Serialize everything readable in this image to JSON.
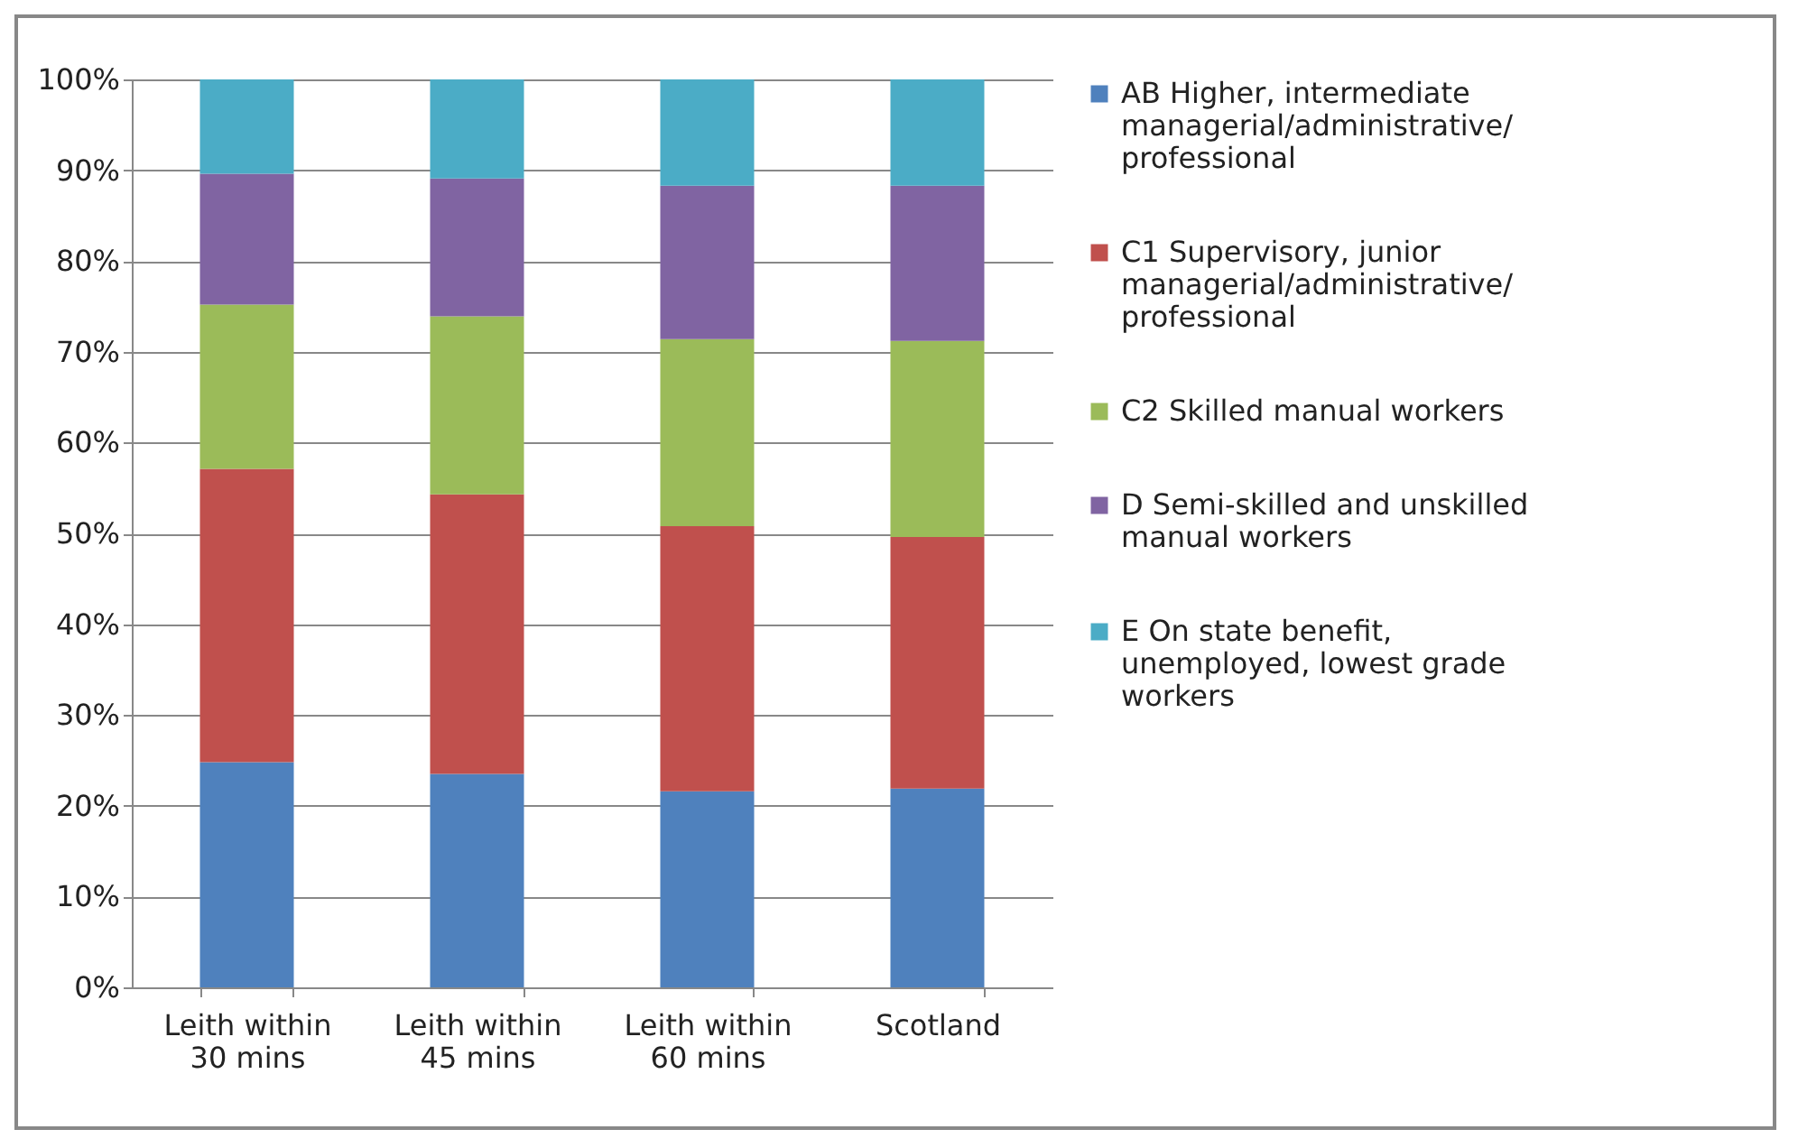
{
  "chart_data": {
    "type": "bar",
    "stacked": true,
    "categories": [
      "Leith within 30 mins",
      "Leith within 45 mins",
      "Leith within 60 mins",
      "Scotland"
    ],
    "series": [
      {
        "name": "AB Higher, intermediate managerial/administrative/ professional",
        "color": "#4f81bd",
        "values": [
          24.8,
          23.5,
          21.6,
          21.9
        ]
      },
      {
        "name": "C1 Supervisory, junior managerial/administrative/ professional",
        "color": "#c0504d",
        "values": [
          32.3,
          30.8,
          29.2,
          27.7
        ]
      },
      {
        "name": "C2 Skilled manual workers",
        "color": "#9bbb59",
        "values": [
          18.1,
          19.6,
          20.6,
          21.6
        ]
      },
      {
        "name": "D Semi-skilled and unskilled manual workers",
        "color": "#8064a2",
        "values": [
          14.4,
          15.2,
          16.9,
          17.1
        ]
      },
      {
        "name": "E On state benefit, unemployed, lowest grade workers",
        "color": "#4bacc6",
        "values": [
          10.4,
          10.9,
          11.7,
          11.7
        ]
      }
    ],
    "ylim": [
      0,
      100
    ],
    "yticks": [
      {
        "value": 0,
        "label": "0%"
      },
      {
        "value": 10,
        "label": "10%"
      },
      {
        "value": 20,
        "label": "20%"
      },
      {
        "value": 30,
        "label": "30%"
      },
      {
        "value": 40,
        "label": "40%"
      },
      {
        "value": 50,
        "label": "50%"
      },
      {
        "value": 60,
        "label": "60%"
      },
      {
        "value": 70,
        "label": "70%"
      },
      {
        "value": 80,
        "label": "80%"
      },
      {
        "value": 90,
        "label": "90%"
      },
      {
        "value": 100,
        "label": "100%"
      }
    ],
    "grid": "y",
    "legend": "right"
  }
}
